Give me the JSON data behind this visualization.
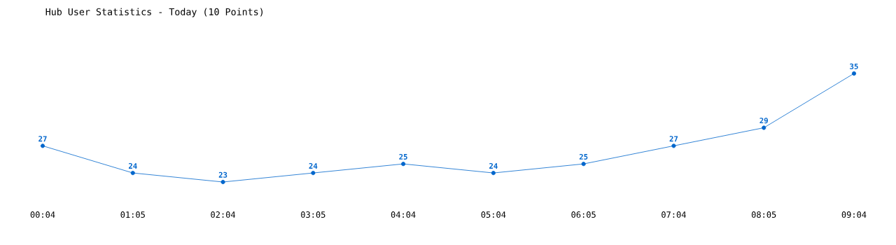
{
  "chart_data": {
    "type": "line",
    "title": "Hub User Statistics - Today (10 Points)",
    "categories": [
      "00:04",
      "01:05",
      "02:04",
      "03:05",
      "04:04",
      "05:04",
      "06:05",
      "07:04",
      "08:05",
      "09:04"
    ],
    "series": [
      {
        "color": "#0066cc",
        "values": [
          27,
          24,
          23,
          24,
          25,
          24,
          25,
          27,
          29,
          35
        ]
      }
    ],
    "data_labels": true,
    "marker": "circle",
    "line_style": "solid",
    "tick_labels": "x"
  }
}
